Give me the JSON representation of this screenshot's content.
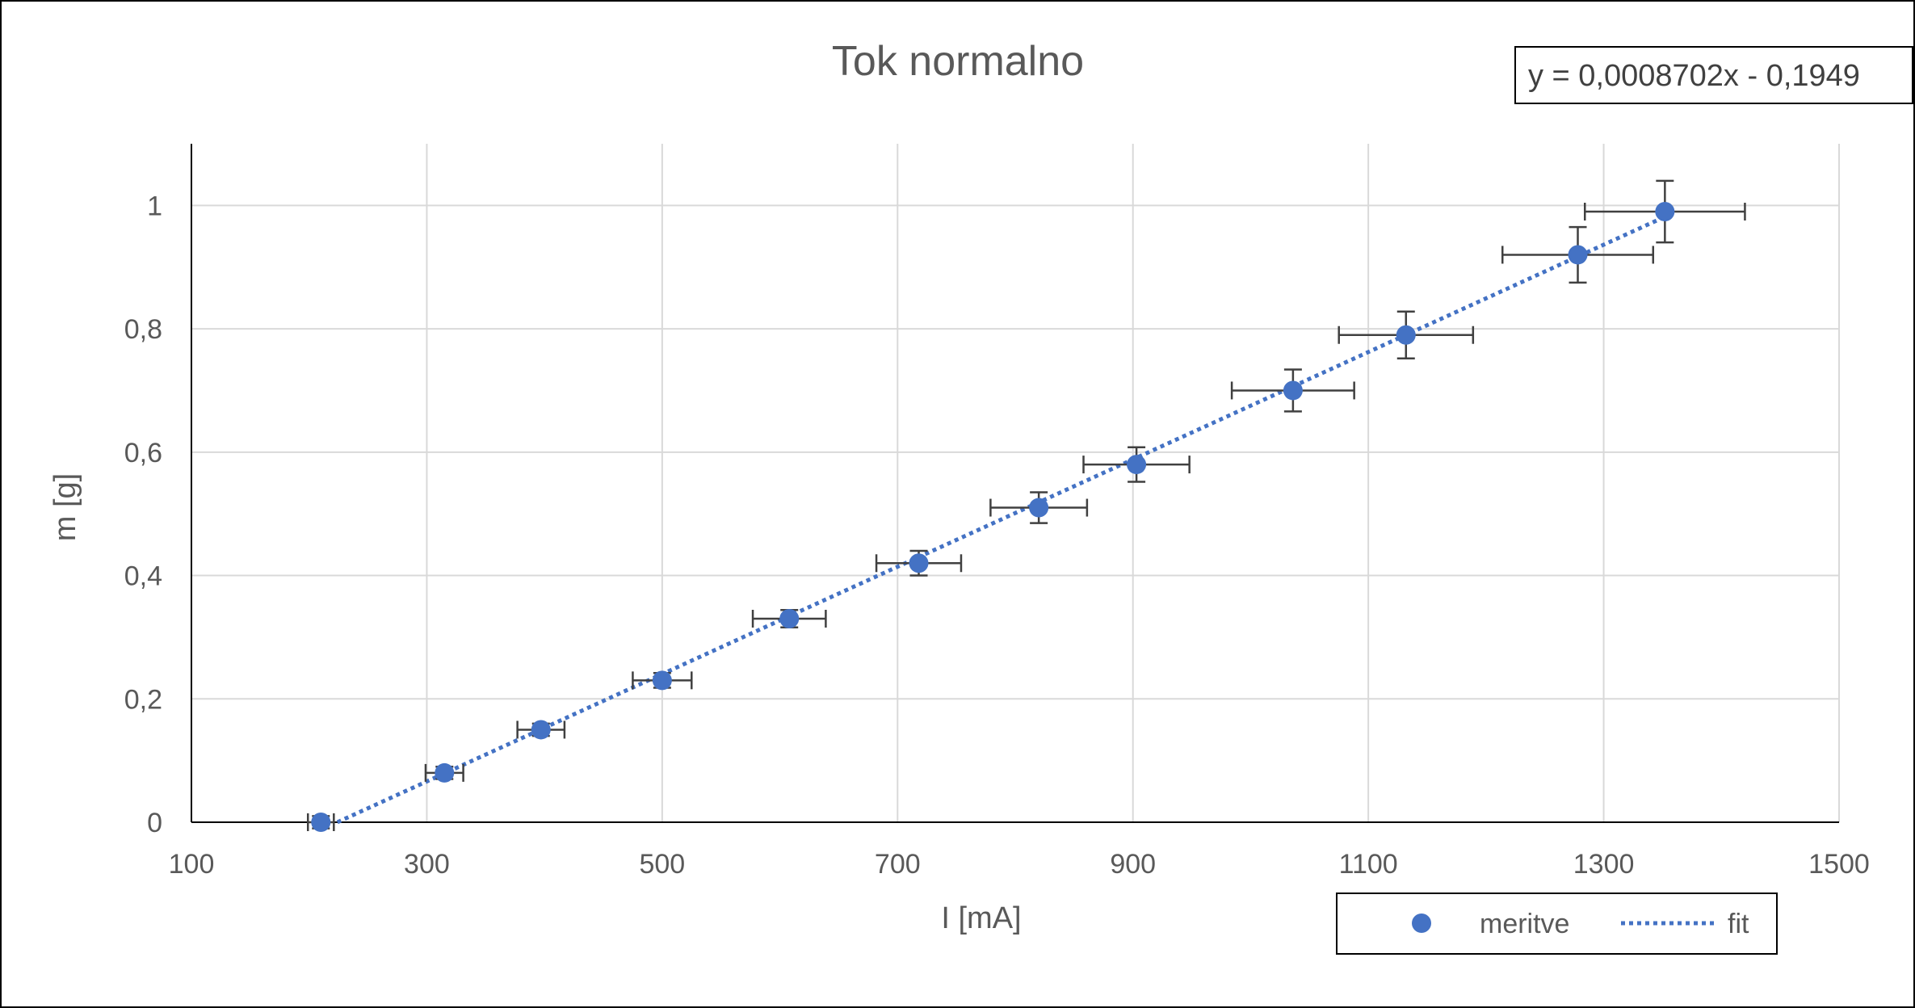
{
  "chart_data": {
    "type": "scatter",
    "title": "Tok normalno",
    "xlabel": "I [mA]",
    "ylabel": "m [g]",
    "xlim": [
      100,
      1500
    ],
    "ylim": [
      0,
      1.1
    ],
    "x_ticks": [
      100,
      300,
      500,
      700,
      900,
      1100,
      1300,
      1500
    ],
    "x_tick_labels": [
      "100",
      "300",
      "500",
      "700",
      "900",
      "1100",
      "1300",
      "1500"
    ],
    "y_ticks": [
      0,
      0.2,
      0.4,
      0.6,
      0.8,
      1
    ],
    "y_tick_labels": [
      "0",
      "0,2",
      "0,4",
      "0,6",
      "0,8",
      "1"
    ],
    "grid": true,
    "legend_position": "bottom-right",
    "equation_label": "y = 0,0008702x - 0,1949",
    "series": [
      {
        "name": "meritve",
        "kind": "points",
        "color": "#4472C4",
        "x": [
          210,
          315,
          397,
          500,
          608,
          718,
          820,
          903,
          1036,
          1132,
          1278,
          1352
        ],
        "y": [
          0,
          0.08,
          0.15,
          0.23,
          0.33,
          0.42,
          0.51,
          0.58,
          0.7,
          0.79,
          0.92,
          0.99
        ],
        "x_err": [
          11,
          16,
          20,
          25,
          31,
          36,
          41,
          45,
          52,
          57,
          64,
          68
        ],
        "y_err": [
          0.01,
          0.01,
          0.01,
          0.012,
          0.014,
          0.02,
          0.025,
          0.028,
          0.034,
          0.038,
          0.045,
          0.05
        ]
      },
      {
        "name": "fit",
        "kind": "trendline",
        "color": "#4472C4",
        "slope": 0.0008702,
        "intercept": -0.1949,
        "x_range": [
          224,
          1352
        ]
      }
    ]
  }
}
